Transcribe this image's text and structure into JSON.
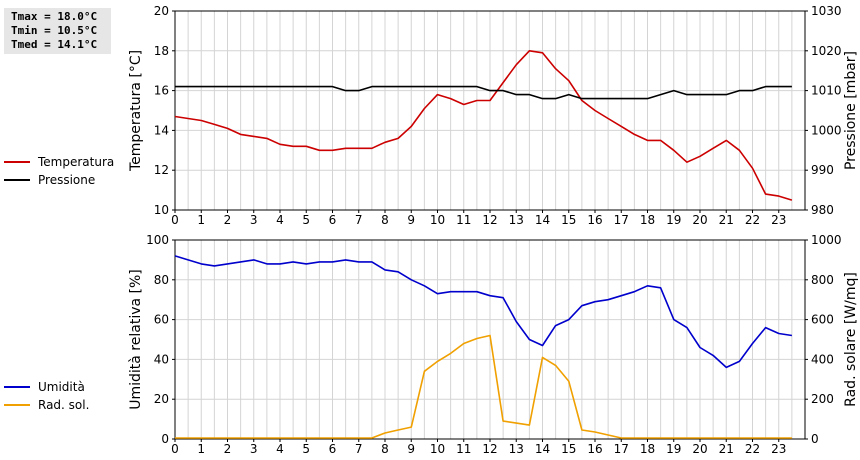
{
  "stats": {
    "tmax": "Tmax = 18.0°C",
    "tmin": "Tmin = 10.5°C",
    "tmed": "Tmed = 14.1°C"
  },
  "legend_top": [
    {
      "label": "Temperatura",
      "color": "#cc0000"
    },
    {
      "label": "Pressione",
      "color": "#000000"
    }
  ],
  "legend_bottom": [
    {
      "label": "Umidità",
      "color": "#0000cc"
    },
    {
      "label": "Rad. sol.",
      "color": "#f0a000"
    }
  ],
  "chart_data": [
    {
      "type": "line",
      "xlim": [
        0,
        24
      ],
      "x_ticks": [
        "0",
        "1",
        "2",
        "3",
        "4",
        "5",
        "6",
        "7",
        "8",
        "9",
        "10",
        "11",
        "12",
        "13",
        "14",
        "15",
        "16",
        "17",
        "18",
        "19",
        "20",
        "21",
        "22",
        "23"
      ],
      "ylabel": "Temperatura [°C]",
      "ylim": [
        10,
        20
      ],
      "y_ticks": [
        "10",
        "12",
        "14",
        "16",
        "18",
        "20"
      ],
      "y2label": "Pressione [mbar]",
      "y2lim": [
        980,
        1030
      ],
      "y2_ticks": [
        "980",
        "990",
        "1000",
        "1010",
        "1020",
        "1030"
      ],
      "grid": true,
      "series": [
        {
          "name": "Temperatura",
          "axis": "left",
          "color": "#cc0000",
          "x": [
            0,
            0.5,
            1,
            1.5,
            2,
            2.5,
            3,
            3.5,
            4,
            4.5,
            5,
            5.5,
            6,
            6.5,
            7,
            7.5,
            8,
            8.5,
            9,
            9.5,
            10,
            10.5,
            11,
            11.5,
            12,
            12.5,
            13,
            13.5,
            14,
            14.5,
            15,
            15.5,
            16,
            16.5,
            17,
            17.5,
            18,
            18.5,
            19,
            19.5,
            20,
            20.5,
            21,
            21.5,
            22,
            22.5,
            23,
            23.5
          ],
          "y": [
            14.7,
            14.6,
            14.5,
            14.3,
            14.1,
            13.8,
            13.7,
            13.6,
            13.3,
            13.2,
            13.2,
            13.0,
            13.0,
            13.1,
            13.1,
            13.1,
            13.4,
            13.6,
            14.2,
            15.1,
            15.8,
            15.6,
            15.3,
            15.5,
            15.5,
            16.4,
            17.3,
            18.0,
            17.9,
            17.1,
            16.5,
            15.5,
            15.0,
            14.6,
            14.2,
            13.8,
            13.5,
            13.5,
            13.0,
            12.4,
            12.7,
            13.1,
            13.5,
            13.0,
            12.1,
            10.8,
            10.7,
            10.5
          ]
        },
        {
          "name": "Pressione",
          "axis": "right",
          "color": "#000000",
          "x": [
            0,
            0.5,
            1,
            1.5,
            2,
            2.5,
            3,
            3.5,
            4,
            4.5,
            5,
            5.5,
            6,
            6.5,
            7,
            7.5,
            8,
            8.5,
            9,
            9.5,
            10,
            10.5,
            11,
            11.5,
            12,
            12.5,
            13,
            13.5,
            14,
            14.5,
            15,
            15.5,
            16,
            16.5,
            17,
            17.5,
            18,
            18.5,
            19,
            19.5,
            20,
            20.5,
            21,
            21.5,
            22,
            22.5,
            23,
            23.5
          ],
          "y": [
            1011,
            1011,
            1011,
            1011,
            1011,
            1011,
            1011,
            1011,
            1011,
            1011,
            1011,
            1011,
            1011,
            1010,
            1010,
            1011,
            1011,
            1011,
            1011,
            1011,
            1011,
            1011,
            1011,
            1011,
            1010,
            1010,
            1009,
            1009,
            1008,
            1008,
            1009,
            1008,
            1008,
            1008,
            1008,
            1008,
            1008,
            1009,
            1010,
            1009,
            1009,
            1009,
            1009,
            1010,
            1010,
            1011,
            1011,
            1011
          ]
        }
      ]
    },
    {
      "type": "line",
      "xlim": [
        0,
        24
      ],
      "x_ticks": [
        "0",
        "1",
        "2",
        "3",
        "4",
        "5",
        "6",
        "7",
        "8",
        "9",
        "10",
        "11",
        "12",
        "13",
        "14",
        "15",
        "16",
        "17",
        "18",
        "19",
        "20",
        "21",
        "22",
        "23"
      ],
      "ylabel": "Umidità relativa [%]",
      "ylim": [
        0,
        100
      ],
      "y_ticks": [
        "0",
        "20",
        "40",
        "60",
        "80",
        "100"
      ],
      "y2label": "Rad. solare [W/mq]",
      "y2lim": [
        0,
        1000
      ],
      "y2_ticks": [
        "0",
        "200",
        "400",
        "600",
        "800",
        "1000"
      ],
      "grid": true,
      "series": [
        {
          "name": "Umidità",
          "axis": "left",
          "color": "#0000cc",
          "x": [
            0,
            0.5,
            1,
            1.5,
            2,
            2.5,
            3,
            3.5,
            4,
            4.5,
            5,
            5.5,
            6,
            6.5,
            7,
            7.5,
            8,
            8.5,
            9,
            9.5,
            10,
            10.5,
            11,
            11.5,
            12,
            12.5,
            13,
            13.5,
            14,
            14.5,
            15,
            15.5,
            16,
            16.5,
            17,
            17.5,
            18,
            18.5,
            19,
            19.5,
            20,
            20.5,
            21,
            21.5,
            22,
            22.5,
            23,
            23.5
          ],
          "y": [
            92,
            90,
            88,
            87,
            88,
            89,
            90,
            88,
            88,
            89,
            88,
            89,
            89,
            90,
            89,
            89,
            85,
            84,
            80,
            77,
            73,
            74,
            74,
            74,
            72,
            71,
            59,
            50,
            47,
            57,
            60,
            67,
            69,
            70,
            72,
            74,
            77,
            76,
            60,
            56,
            46,
            42,
            36,
            39,
            48,
            56,
            53,
            52
          ]
        },
        {
          "name": "Rad. sol.",
          "axis": "right",
          "color": "#f0a000",
          "x": [
            0,
            0.5,
            1,
            1.5,
            2,
            2.5,
            3,
            3.5,
            4,
            4.5,
            5,
            5.5,
            6,
            6.5,
            7,
            7.5,
            8,
            8.5,
            9,
            9.5,
            10,
            10.5,
            11,
            11.5,
            12,
            12.5,
            13,
            13.5,
            14,
            14.5,
            15,
            15.5,
            16,
            16.5,
            17,
            17.5,
            18,
            18.5,
            19,
            19.5,
            20,
            20.5,
            21,
            21.5,
            22,
            22.5,
            23,
            23.5
          ],
          "y": [
            5,
            5,
            5,
            5,
            5,
            5,
            5,
            5,
            5,
            5,
            5,
            5,
            5,
            5,
            5,
            5,
            30,
            45,
            60,
            340,
            390,
            430,
            480,
            505,
            520,
            90,
            80,
            70,
            410,
            370,
            290,
            45,
            35,
            20,
            5,
            5,
            5,
            5,
            5,
            5,
            5,
            5,
            5,
            5,
            5,
            5,
            5,
            5
          ]
        }
      ]
    }
  ]
}
